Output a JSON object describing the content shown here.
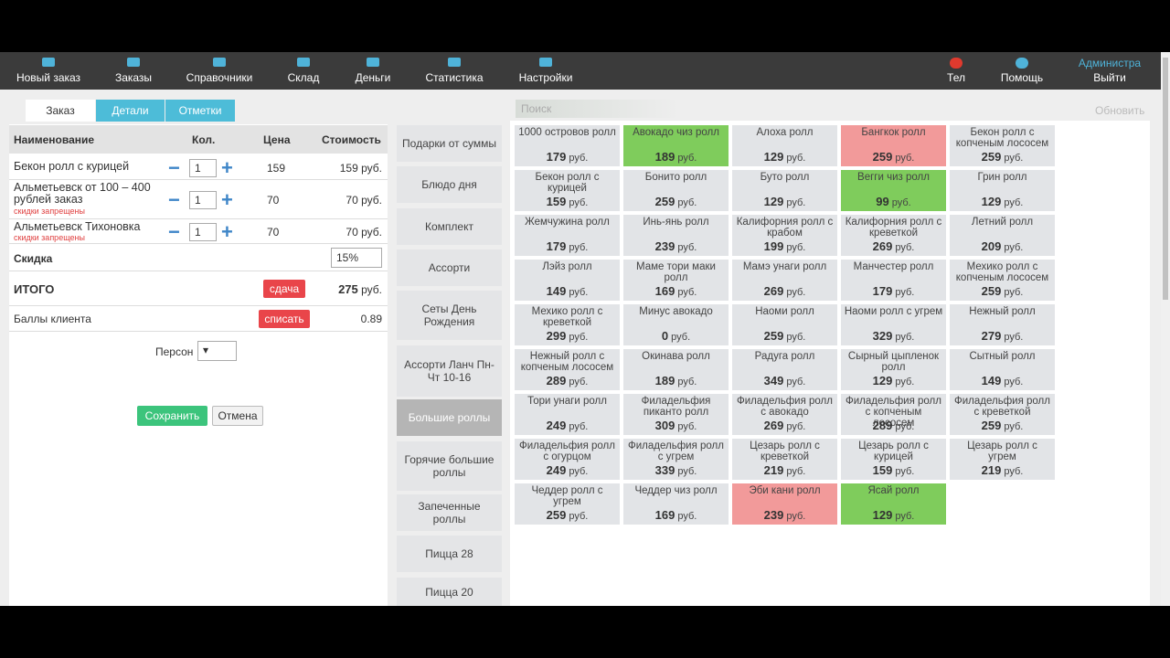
{
  "nav": {
    "items": [
      "Новый заказ",
      "Заказы",
      "Справочники",
      "Склад",
      "Деньги",
      "Статистика",
      "Настройки"
    ],
    "right": [
      "Тел",
      "Помощь"
    ],
    "user": {
      "name": "Администра",
      "logout": "Выйти"
    }
  },
  "tabs": [
    "Заказ",
    "Детали",
    "Отметки"
  ],
  "search": {
    "placeholder": "Поиск",
    "refresh": "Обновить"
  },
  "currency": "руб.",
  "order": {
    "columns": [
      "Наименование",
      "Кол.",
      "Цена",
      "Стоимость"
    ],
    "rows": [
      {
        "name": "Бекон ролл с курицей",
        "qty": 1,
        "price": 159,
        "cost": 159
      },
      {
        "name": "Альметьевск от 100 – 400 рублей заказ",
        "note": "скидки запрещены",
        "qty": 1,
        "price": 70,
        "cost": 70
      },
      {
        "name": "Альметьевск Тихоновка",
        "note": "скидки запрещены",
        "qty": 1,
        "price": 70,
        "cost": 70
      }
    ],
    "discount": {
      "label": "Скидка",
      "value": "15%"
    },
    "total": {
      "label": "ИТОГО",
      "button": "сдача",
      "value": 275
    },
    "points": {
      "label": "Баллы клиента",
      "button": "списать",
      "value": 0.89
    },
    "persons": {
      "label": "Персон"
    },
    "save": "Сохранить",
    "cancel": "Отмена"
  },
  "categories": {
    "items": [
      "Подарки от суммы",
      "Блюдо дня",
      "Комплект",
      "Ассорти",
      "Сеты День Рождения",
      "Ассорти Ланч Пн-Чт 10-16",
      "Большие роллы",
      "Горячие большие роллы",
      "Запеченные роллы",
      "Пицца 28",
      "Пицца 20"
    ],
    "active": 6
  },
  "products": [
    {
      "name": "1000 островов ролл",
      "price": 179
    },
    {
      "name": "Авокадо чиз ролл",
      "price": 189,
      "color": "#7fcc5c"
    },
    {
      "name": "Алоха ролл",
      "price": 129
    },
    {
      "name": "Бангкок ролл",
      "price": 259,
      "color": "#f29a9a"
    },
    {
      "name": "Бекон ролл с копченым лососем",
      "price": 259
    },
    {
      "name": "Бекон ролл с курицей",
      "price": 159
    },
    {
      "name": "Бонито ролл",
      "price": 259
    },
    {
      "name": "Буто ролл",
      "price": 129
    },
    {
      "name": "Вегги чиз ролл",
      "price": 99,
      "color": "#7fcc5c"
    },
    {
      "name": "Грин ролл",
      "price": 129
    },
    {
      "name": "Жемчужина ролл",
      "price": 179
    },
    {
      "name": "Инь-янь ролл",
      "price": 239
    },
    {
      "name": "Калифорния ролл с крабом",
      "price": 199
    },
    {
      "name": "Калифорния ролл с креветкой",
      "price": 269
    },
    {
      "name": "Летний ролл",
      "price": 209
    },
    {
      "name": "Лэйз ролл",
      "price": 149
    },
    {
      "name": "Маме тори маки ролл",
      "price": 169
    },
    {
      "name": "Мамэ унаги ролл",
      "price": 269
    },
    {
      "name": "Манчестер ролл",
      "price": 179
    },
    {
      "name": "Мехико ролл с копченым лососем",
      "price": 259
    },
    {
      "name": "Мехико ролл с креветкой",
      "price": 299
    },
    {
      "name": "Минус авокадо",
      "price": 0
    },
    {
      "name": "Наоми ролл",
      "price": 259
    },
    {
      "name": "Наоми ролл с угрем",
      "price": 329
    },
    {
      "name": "Нежный ролл",
      "price": 279
    },
    {
      "name": "Нежный ролл с копченым лососем",
      "price": 289
    },
    {
      "name": "Окинава ролл",
      "price": 189
    },
    {
      "name": "Радуга ролл",
      "price": 349
    },
    {
      "name": "Сырный цыпленок ролл",
      "price": 129
    },
    {
      "name": "Сытный ролл",
      "price": 149
    },
    {
      "name": "Тори унаги ролл",
      "price": 249
    },
    {
      "name": "Филадельфия пиканто ролл",
      "price": 309
    },
    {
      "name": "Филадельфия ролл с авокадо",
      "price": 269
    },
    {
      "name": "Филадельфия ролл с копченым лососем",
      "price": 289
    },
    {
      "name": "Филадельфия ролл с креветкой",
      "price": 259
    },
    {
      "name": "Филадельфия ролл с огурцом",
      "price": 249
    },
    {
      "name": "Филадельфия ролл с угрем",
      "price": 339
    },
    {
      "name": "Цезарь ролл с креветкой",
      "price": 219
    },
    {
      "name": "Цезарь ролл с курицей",
      "price": 159
    },
    {
      "name": "Цезарь ролл с угрем",
      "price": 219
    },
    {
      "name": "Чеддер ролл с угрем",
      "price": 259
    },
    {
      "name": "Чеддер чиз ролл",
      "price": 169
    },
    {
      "name": "Эби кани ролл",
      "price": 239,
      "color": "#f29a9a"
    },
    {
      "name": "Ясай ролл",
      "price": 129,
      "color": "#7fcc5c"
    }
  ]
}
